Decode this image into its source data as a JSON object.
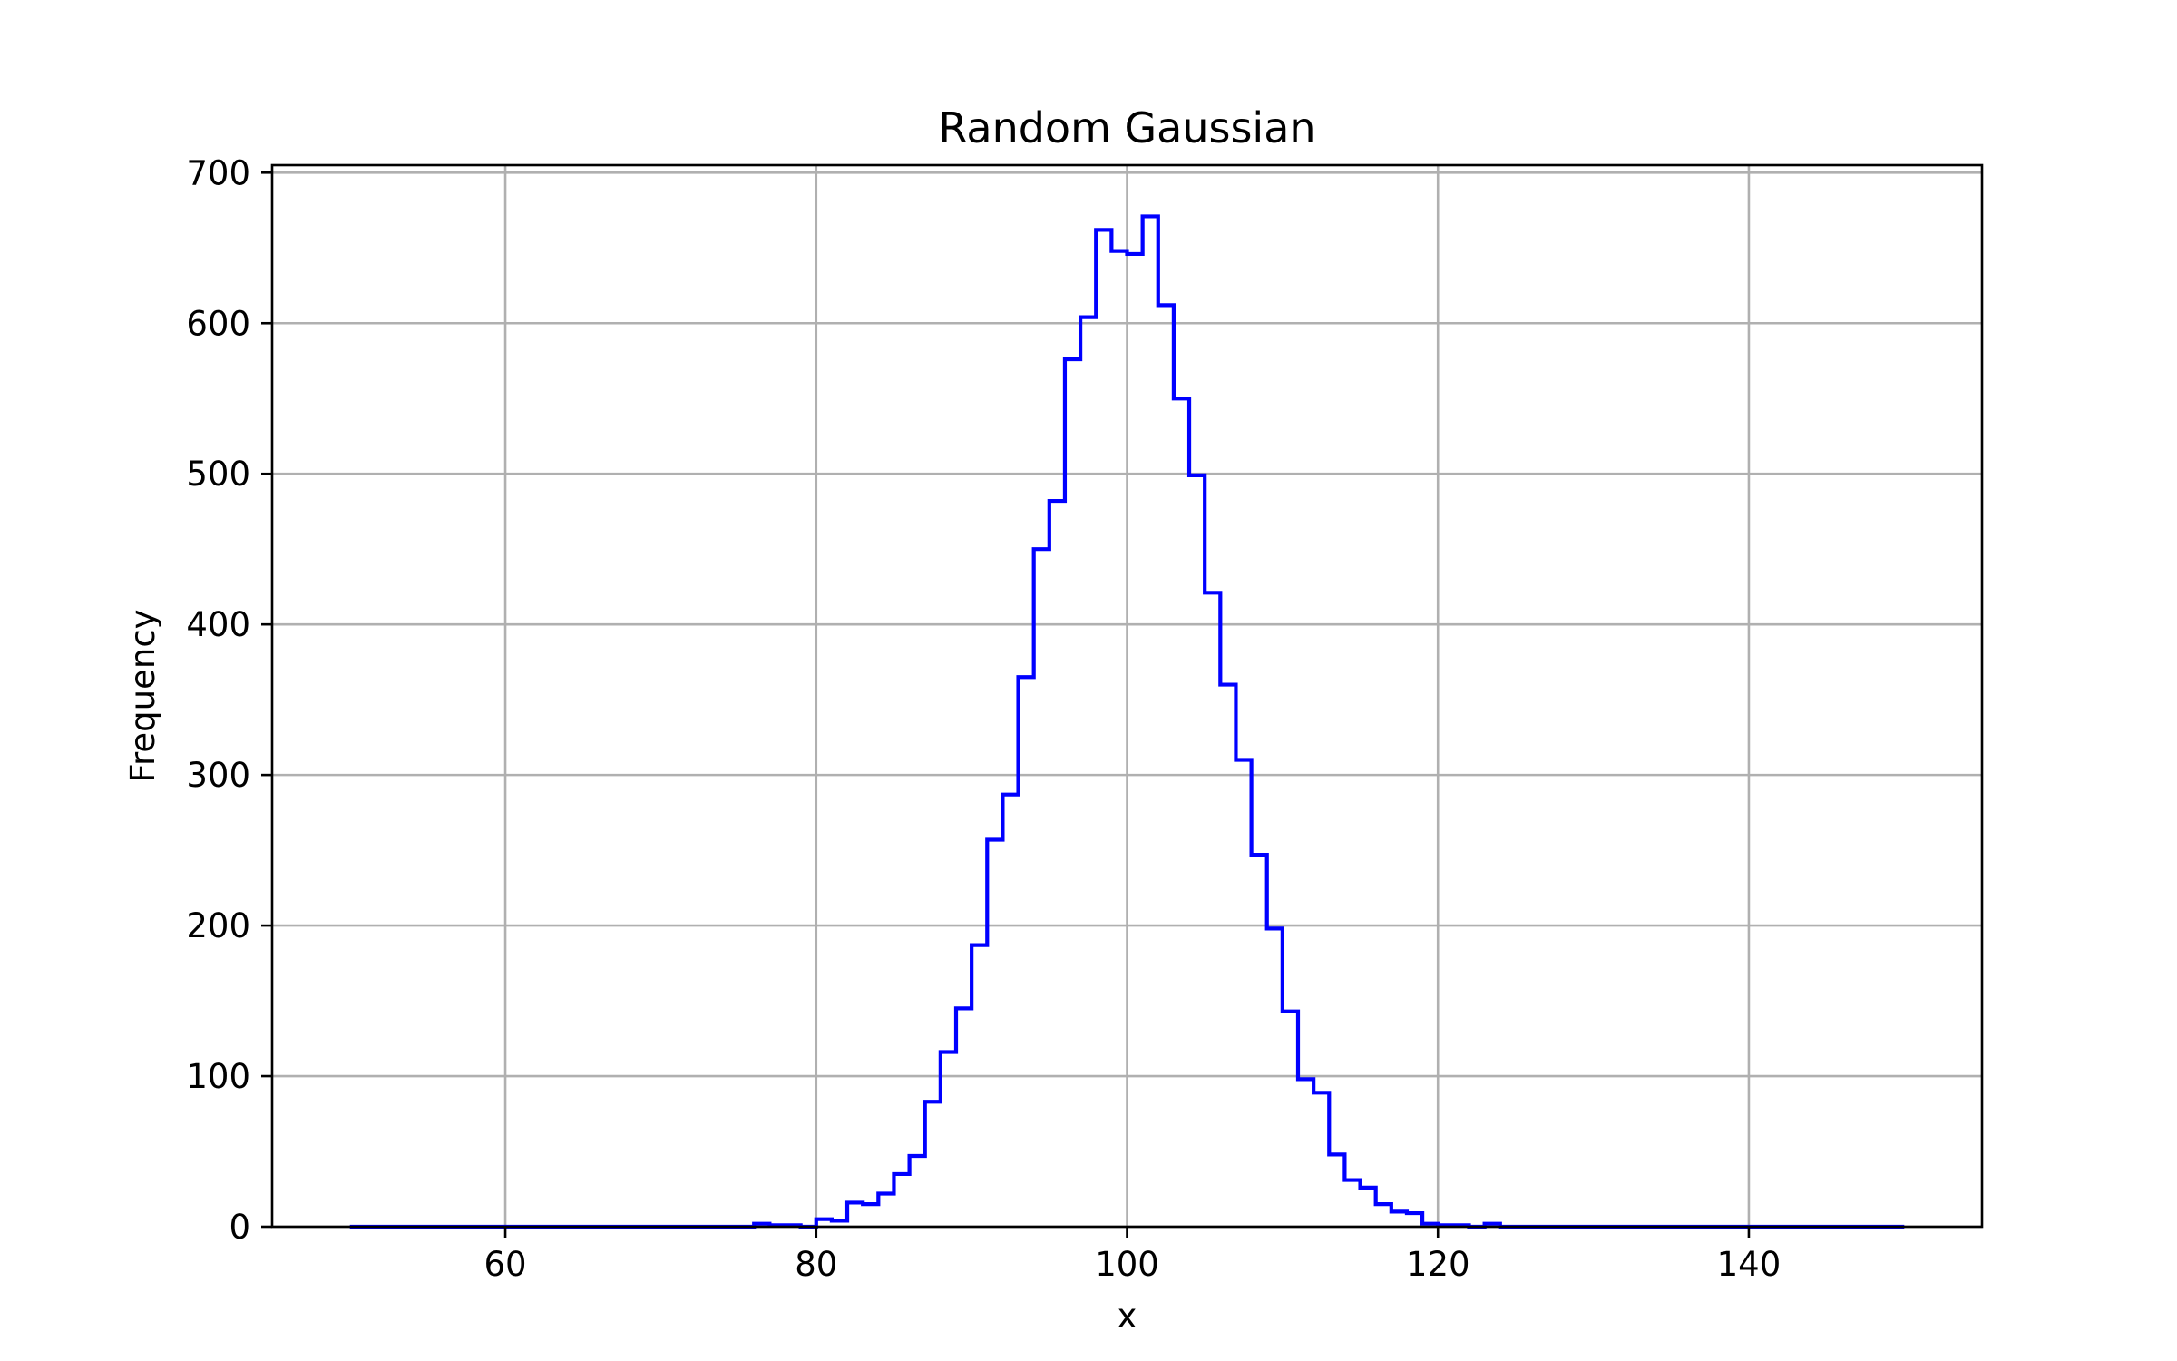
{
  "chart_data": {
    "type": "histogram",
    "title": "Random Gaussian",
    "xlabel": "x",
    "ylabel": "Frequency",
    "xlim": [
      45,
      155
    ],
    "ylim": [
      0,
      705
    ],
    "xticks": [
      60,
      80,
      100,
      120,
      140
    ],
    "yticks": [
      0,
      100,
      200,
      300,
      400,
      500,
      600,
      700
    ],
    "grid": true,
    "legend": "none",
    "histtype": "step",
    "line_color": "#0000ff",
    "bin_start": 50,
    "bin_width": 1,
    "values": [
      0,
      0,
      0,
      0,
      0,
      0,
      0,
      0,
      0,
      0,
      0,
      0,
      0,
      0,
      0,
      0,
      0,
      0,
      0,
      0,
      0,
      0,
      0,
      0,
      0,
      0,
      2,
      1,
      1,
      0,
      5,
      4,
      16,
      15,
      22,
      35,
      47,
      83,
      116,
      145,
      187,
      257,
      287,
      365,
      450,
      482,
      576,
      604,
      662,
      648,
      646,
      671,
      612,
      550,
      499,
      421,
      360,
      310,
      247,
      198,
      143,
      98,
      89,
      48,
      31,
      26,
      15,
      10,
      9,
      2,
      1,
      1,
      0,
      2,
      0,
      0,
      0,
      0,
      0,
      0,
      0,
      0,
      0,
      0,
      0,
      0,
      0,
      0,
      0,
      0,
      0,
      0,
      0,
      0,
      0,
      0,
      0,
      0,
      0,
      0
    ]
  }
}
